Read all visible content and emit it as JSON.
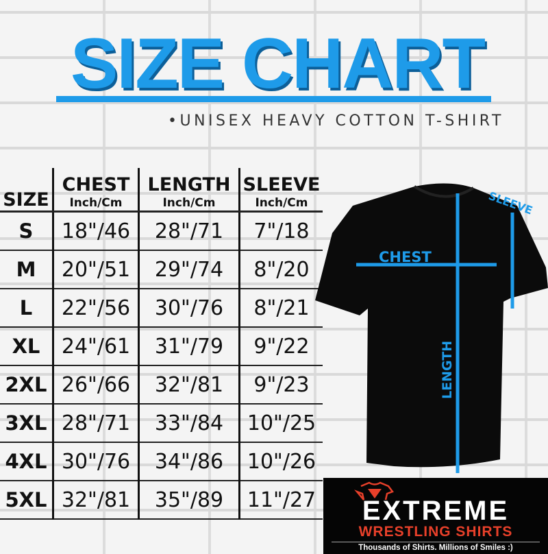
{
  "title": "SIZE CHART",
  "subtitle": "•UNISEX HEAVY COTTON T-SHIRT",
  "accent_color": "#1e9be9",
  "table": {
    "size_header": "SIZE",
    "columns": [
      {
        "name": "CHEST",
        "unit": "Inch/Cm"
      },
      {
        "name": "LENGTH",
        "unit": "Inch/Cm"
      },
      {
        "name": "SLEEVE",
        "unit": "Inch/Cm"
      }
    ],
    "rows": [
      {
        "size": "S",
        "chest": "18\"/46",
        "length": "28\"/71",
        "sleeve": "7\"/18"
      },
      {
        "size": "M",
        "chest": "20\"/51",
        "length": "29\"/74",
        "sleeve": "8\"/20"
      },
      {
        "size": "L",
        "chest": "22\"/56",
        "length": "30\"/76",
        "sleeve": "8\"/21"
      },
      {
        "size": "XL",
        "chest": "24\"/61",
        "length": "31\"/79",
        "sleeve": "9\"/22"
      },
      {
        "size": "2XL",
        "chest": "26\"/66",
        "length": "32\"/81",
        "sleeve": "9\"/23"
      },
      {
        "size": "3XL",
        "chest": "28\"/71",
        "length": "33\"/84",
        "sleeve": "10\"/25"
      },
      {
        "size": "4XL",
        "chest": "30\"/76",
        "length": "34\"/86",
        "sleeve": "10\"/26"
      },
      {
        "size": "5XL",
        "chest": "32\"/81",
        "length": "35\"/89",
        "sleeve": "11\"/27"
      }
    ]
  },
  "diagram": {
    "chest": "CHEST",
    "length": "LENGTH",
    "sleeve": "SLEEVE"
  },
  "logo": {
    "line1": "EXTREME",
    "line2": "WRESTLING SHIRTS",
    "tagline": "Thousands of Shirts. Millions of Smiles :)"
  }
}
